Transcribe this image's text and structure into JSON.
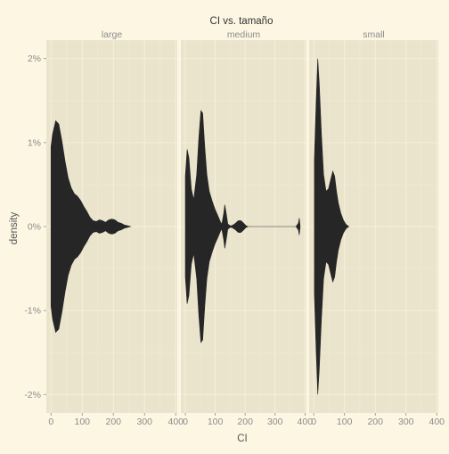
{
  "colors": {
    "page_background": "#fdf6e3",
    "panel_background": "#ebe4cd",
    "grid_major": "#f6efd9",
    "grid_minor": "#f1ead4",
    "violin_fill": "#262626",
    "text": "#8c8c8c"
  },
  "chart_data": {
    "type": "violin",
    "title": "CI  vs.  tamaño",
    "xlabel": "CI",
    "ylabel": "density",
    "xlim": [
      -15,
      405
    ],
    "ylim": [
      -2.22,
      2.22
    ],
    "x_ticks": [
      0,
      100,
      200,
      300,
      400
    ],
    "x_tick_labels": [
      "0",
      "100",
      "200",
      "300",
      "400"
    ],
    "y_ticks": [
      -2,
      -1,
      0,
      1,
      2
    ],
    "y_tick_labels": [
      "-2%",
      "-1%",
      "0%",
      "1%",
      "2%"
    ],
    "grid": true,
    "legend": "none",
    "facets": [
      {
        "label": "large",
        "profile": [
          [
            0,
            0.95
          ],
          [
            5,
            1.1
          ],
          [
            15,
            1.26
          ],
          [
            25,
            1.22
          ],
          [
            35,
            1.02
          ],
          [
            45,
            0.78
          ],
          [
            55,
            0.58
          ],
          [
            65,
            0.46
          ],
          [
            75,
            0.39
          ],
          [
            85,
            0.36
          ],
          [
            95,
            0.31
          ],
          [
            105,
            0.24
          ],
          [
            115,
            0.18
          ],
          [
            125,
            0.11
          ],
          [
            135,
            0.07
          ],
          [
            145,
            0.06
          ],
          [
            155,
            0.08
          ],
          [
            165,
            0.07
          ],
          [
            175,
            0.05
          ],
          [
            185,
            0.08
          ],
          [
            195,
            0.09
          ],
          [
            205,
            0.08
          ],
          [
            215,
            0.05
          ],
          [
            225,
            0.04
          ],
          [
            235,
            0.02
          ],
          [
            245,
            0.01
          ],
          [
            255,
            0.0
          ]
        ]
      },
      {
        "label": "medium",
        "profile": [
          [
            0,
            0.6
          ],
          [
            6,
            0.92
          ],
          [
            12,
            0.82
          ],
          [
            20,
            0.45
          ],
          [
            28,
            0.32
          ],
          [
            38,
            0.62
          ],
          [
            45,
            1.05
          ],
          [
            52,
            1.38
          ],
          [
            58,
            1.35
          ],
          [
            65,
            0.95
          ],
          [
            72,
            0.62
          ],
          [
            80,
            0.42
          ],
          [
            90,
            0.3
          ],
          [
            100,
            0.2
          ],
          [
            110,
            0.12
          ],
          [
            118,
            0.05
          ],
          [
            122,
            0.03
          ],
          [
            128,
            0.15
          ],
          [
            132,
            0.26
          ],
          [
            137,
            0.15
          ],
          [
            142,
            0.03
          ],
          [
            150,
            0.01
          ],
          [
            155,
            0.01
          ],
          [
            160,
            0.02
          ],
          [
            168,
            0.04
          ],
          [
            177,
            0.07
          ],
          [
            186,
            0.07
          ],
          [
            195,
            0.04
          ],
          [
            203,
            0.01
          ],
          [
            210,
            0.0
          ],
          [
            370,
            0.0
          ],
          [
            378,
            0.04
          ],
          [
            381,
            0.1
          ],
          [
            384,
            0.0
          ]
        ]
      },
      {
        "label": "small",
        "profile": [
          [
            2,
            0.8
          ],
          [
            8,
            1.5
          ],
          [
            13,
            2.0
          ],
          [
            18,
            1.7
          ],
          [
            25,
            1.1
          ],
          [
            32,
            0.62
          ],
          [
            40,
            0.42
          ],
          [
            48,
            0.45
          ],
          [
            55,
            0.56
          ],
          [
            62,
            0.66
          ],
          [
            68,
            0.6
          ],
          [
            74,
            0.42
          ],
          [
            80,
            0.28
          ],
          [
            88,
            0.16
          ],
          [
            96,
            0.08
          ],
          [
            104,
            0.03
          ],
          [
            110,
            0.01
          ],
          [
            114,
            0.0
          ]
        ]
      }
    ]
  }
}
